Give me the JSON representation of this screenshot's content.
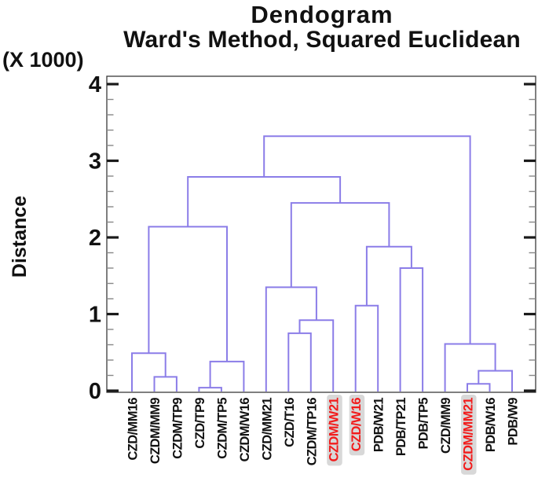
{
  "title": {
    "line1": "Dendogram",
    "line2": "Ward's Method, Squared Euclidean"
  },
  "y_axis": {
    "scale_note": "(X 1000)",
    "label": "Distance",
    "tick_labels": [
      "0",
      "1",
      "2",
      "3",
      "4"
    ],
    "tick_values": [
      0,
      1,
      2,
      3,
      4
    ],
    "minor_step": 0.2,
    "min": 0,
    "max": 4.1
  },
  "chart_data": {
    "type": "dendrogram",
    "title": "Dendogram",
    "subtitle": "Ward's Method, Squared Euclidean",
    "ylabel": "Distance",
    "y_units_note": "(X 1000)",
    "ylim": [
      0,
      4.1
    ],
    "leaves": [
      {
        "label": "CZD/MM16",
        "highlight": false
      },
      {
        "label": "CZDM/MM9",
        "highlight": false
      },
      {
        "label": "CZDM/TP9",
        "highlight": false
      },
      {
        "label": "CZD/TP9",
        "highlight": false
      },
      {
        "label": "CZDM/TP5",
        "highlight": false
      },
      {
        "label": "CZDM/W16",
        "highlight": false
      },
      {
        "label": "CZD/MM21",
        "highlight": false
      },
      {
        "label": "CZD/T16",
        "highlight": false
      },
      {
        "label": "CZDM/TP16",
        "highlight": false
      },
      {
        "label": "CZDM/W21",
        "highlight": true
      },
      {
        "label": "CZD/W16",
        "highlight": true
      },
      {
        "label": "PDB/W21",
        "highlight": false
      },
      {
        "label": "PDB/TP21",
        "highlight": false
      },
      {
        "label": "PDB/TP5",
        "highlight": false
      },
      {
        "label": "CZD/MM9",
        "highlight": false
      },
      {
        "label": "CZDM/MM21",
        "highlight": true
      },
      {
        "label": "PDB/W16",
        "highlight": false
      },
      {
        "label": "PDB/W9",
        "highlight": false
      }
    ],
    "merges": [
      {
        "id": "M1",
        "a": "L4",
        "b": "L5",
        "h": 0.04
      },
      {
        "id": "M2",
        "a": "L16",
        "b": "L17",
        "h": 0.09
      },
      {
        "id": "M3",
        "a": "L2",
        "b": "L3",
        "h": 0.18
      },
      {
        "id": "M4",
        "a": "M2",
        "b": "L18",
        "h": 0.26
      },
      {
        "id": "M5",
        "a": "M1",
        "b": "L6",
        "h": 0.38
      },
      {
        "id": "M6",
        "a": "L1",
        "b": "M3",
        "h": 0.49
      },
      {
        "id": "M7",
        "a": "L15",
        "b": "M4",
        "h": 0.61
      },
      {
        "id": "M8",
        "a": "L8",
        "b": "L9",
        "h": 0.75
      },
      {
        "id": "M9",
        "a": "M8",
        "b": "L10",
        "h": 0.92
      },
      {
        "id": "M10",
        "a": "L11",
        "b": "L12",
        "h": 1.11
      },
      {
        "id": "M11",
        "a": "L7",
        "b": "M9",
        "h": 1.35
      },
      {
        "id": "M12",
        "a": "L13",
        "b": "L14",
        "h": 1.6
      },
      {
        "id": "M13",
        "a": "M10",
        "b": "M12",
        "h": 1.88
      },
      {
        "id": "M14",
        "a": "M6",
        "b": "M5",
        "h": 2.14
      },
      {
        "id": "M15",
        "a": "M11",
        "b": "M13",
        "h": 2.45
      },
      {
        "id": "M16",
        "a": "M14",
        "b": "M15",
        "h": 2.79
      },
      {
        "id": "M17",
        "a": "M16",
        "b": "M7",
        "h": 3.32
      }
    ],
    "colors": {
      "link_line": "#8b7de8",
      "frame": "#3a3a3a",
      "major_tick": "#1a1a1a",
      "minor_tick": "#888888",
      "text": "#111111",
      "highlight_text": "#f21b1b",
      "highlight_bg": "#d8d8d8"
    }
  }
}
